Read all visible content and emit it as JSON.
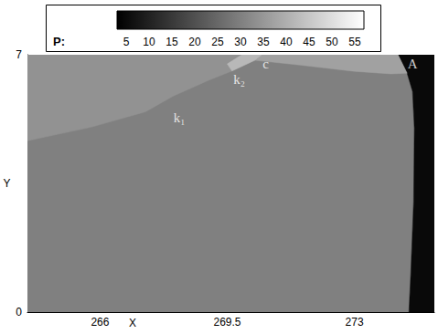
{
  "chart_data": {
    "type": "contour",
    "xlabel": "X",
    "ylabel": "Y",
    "xlim": [
      264,
      275.2
    ],
    "xticks": [
      266,
      269.5,
      273
    ],
    "ylim": [
      0,
      7
    ],
    "yticks": [
      0,
      7
    ],
    "grid": false,
    "colorbar": {
      "label": "P:",
      "range": [
        3,
        57
      ],
      "ticks": [
        5,
        10,
        15,
        20,
        25,
        30,
        35,
        40,
        45,
        50,
        55
      ]
    },
    "regions": [
      {
        "P": 30,
        "outline": [
          [
            264,
            0
          ],
          [
            274.5,
            0
          ],
          [
            274.55,
            1
          ],
          [
            274.63,
            3
          ],
          [
            274.65,
            5
          ],
          [
            274.6,
            6
          ],
          [
            274.45,
            6.5
          ],
          [
            274.2,
            7
          ],
          [
            264,
            7
          ]
        ]
      },
      {
        "P": 5,
        "outline": [
          [
            274.5,
            0
          ],
          [
            275.2,
            0
          ],
          [
            275.2,
            7
          ],
          [
            274.2,
            7
          ],
          [
            274.45,
            6.5
          ],
          [
            274.6,
            6
          ],
          [
            274.65,
            5
          ],
          [
            274.63,
            3
          ],
          [
            274.55,
            1
          ]
        ]
      },
      {
        "P": 34,
        "outline": [
          [
            264,
            4.66
          ],
          [
            265.75,
            5.03
          ],
          [
            267.25,
            5.45
          ],
          [
            268,
            5.87
          ],
          [
            269,
            6.31
          ],
          [
            269.63,
            6.56
          ],
          [
            270.26,
            6.85
          ],
          [
            270.45,
            7
          ],
          [
            264,
            7
          ]
        ]
      },
      {
        "P": 37,
        "outline": [
          [
            270.26,
            6.85
          ],
          [
            271.5,
            6.72
          ],
          [
            273,
            6.55
          ],
          [
            274,
            6.48
          ],
          [
            274.45,
            6.5
          ],
          [
            274.2,
            7
          ],
          [
            270.45,
            7
          ]
        ]
      },
      {
        "P": 42,
        "outline": [
          [
            269.63,
            6.56
          ],
          [
            270.26,
            6.85
          ],
          [
            270.45,
            7
          ],
          [
            269.9,
            7
          ],
          [
            269.5,
            6.75
          ]
        ]
      }
    ],
    "annotations": [
      {
        "text": "k₁",
        "x": 268.18,
        "y": 5.28
      },
      {
        "text": "k₂",
        "x": 269.83,
        "y": 6.33
      },
      {
        "text": "c",
        "x": 270.56,
        "y": 6.75
      },
      {
        "text": "A",
        "x": 274.6,
        "y": 6.75
      }
    ]
  }
}
